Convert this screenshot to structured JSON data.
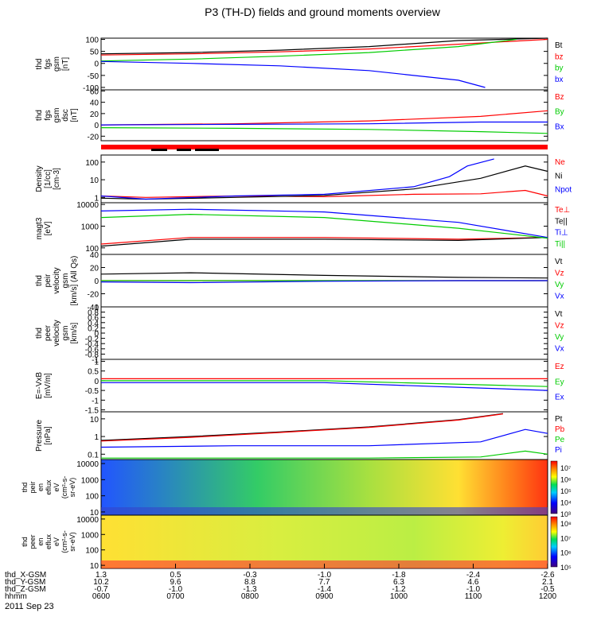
{
  "title": "P3 (TH-D) fields and ground moments overview",
  "date_label": "2011 Sep 23",
  "chart_data": {
    "type": "line",
    "panels": [
      {
        "id": "fgs_gsm",
        "ylabel_lines": [
          "thd",
          "fgs",
          "gsm",
          "[nT]"
        ],
        "yticks": [
          100,
          50,
          0,
          -50,
          -100
        ],
        "ylim": [
          -110,
          105
        ],
        "series": [
          {
            "name": "Bt",
            "color": "#000000",
            "x": [
              0,
              0.2,
              0.4,
              0.6,
              0.8,
              1.0
            ],
            "y": [
              40,
              45,
              55,
              70,
              95,
              110
            ]
          },
          {
            "name": "bz",
            "color": "#ff0000",
            "x": [
              0,
              0.2,
              0.4,
              0.6,
              0.8,
              1.0
            ],
            "y": [
              35,
              40,
              48,
              60,
              80,
              100
            ]
          },
          {
            "name": "by",
            "color": "#00cc00",
            "x": [
              0,
              0.2,
              0.4,
              0.6,
              0.8,
              0.93
            ],
            "y": [
              10,
              18,
              30,
              45,
              70,
              100
            ]
          },
          {
            "name": "bx",
            "color": "#0000ff",
            "x": [
              0,
              0.2,
              0.4,
              0.6,
              0.8,
              0.86
            ],
            "y": [
              8,
              0,
              -10,
              -30,
              -70,
              -100
            ]
          }
        ]
      },
      {
        "id": "fgs_gsm_dsl",
        "ylabel_lines": [
          "thd",
          "fgs",
          "gsm",
          "dsc",
          "[nT]"
        ],
        "yticks": [
          60,
          40,
          20,
          0,
          -20
        ],
        "ylim": [
          -28,
          62
        ],
        "series": [
          {
            "name": "Bz",
            "color": "#ff0000",
            "x": [
              0,
              0.3,
              0.6,
              0.85,
              1.0
            ],
            "y": [
              0,
              2,
              7,
              15,
              25
            ]
          },
          {
            "name": "By",
            "color": "#00cc00",
            "x": [
              0,
              0.3,
              0.6,
              0.85,
              1.0
            ],
            "y": [
              -5,
              -6,
              -8,
              -12,
              -15
            ]
          },
          {
            "name": "Bx",
            "color": "#0000ff",
            "x": [
              0,
              0.3,
              0.6,
              0.85,
              1.0
            ],
            "y": [
              0,
              1,
              2,
              5,
              5
            ]
          }
        ]
      },
      {
        "id": "density",
        "ylabel_lines": [
          "Density",
          "[1/cc]",
          "[cm-3]"
        ],
        "yticks": [
          100,
          10,
          1
        ],
        "ylog": true,
        "ylim": [
          0.5,
          250
        ],
        "series": [
          {
            "name": "Ne",
            "color": "#ff0000",
            "x": [
              0,
              0.1,
              0.3,
              0.5,
              0.7,
              0.85,
              0.95,
              1.0
            ],
            "y": [
              1.2,
              1.0,
              1.2,
              1.1,
              1.5,
              1.6,
              2.5,
              1.2
            ]
          },
          {
            "name": "Ni",
            "color": "#000000",
            "x": [
              0,
              0.1,
              0.3,
              0.5,
              0.7,
              0.85,
              0.95,
              1.0
            ],
            "y": [
              0.9,
              0.8,
              1.0,
              1.3,
              3,
              12,
              60,
              30
            ]
          },
          {
            "name": "Npot",
            "color": "#0000ff",
            "x": [
              0,
              0.1,
              0.3,
              0.5,
              0.7,
              0.78,
              0.82,
              0.88
            ],
            "y": [
              1.2,
              0.8,
              1.2,
              1.5,
              4,
              15,
              60,
              150
            ]
          }
        ]
      },
      {
        "id": "temperature",
        "ylabel_lines": [
          "magt3",
          "[eV]"
        ],
        "yticks": [
          10000,
          1000,
          100
        ],
        "ylog": true,
        "ylim": [
          50,
          12000
        ],
        "series": [
          {
            "name": "Te⊥",
            "color": "#ff0000",
            "x": [
              0,
              0.2,
              0.5,
              0.8,
              1.0
            ],
            "y": [
              150,
              300,
              300,
              250,
              300
            ]
          },
          {
            "name": "Te||",
            "color": "#000000",
            "x": [
              0,
              0.2,
              0.5,
              0.8,
              1.0
            ],
            "y": [
              120,
              250,
              250,
              220,
              300
            ]
          },
          {
            "name": "Ti⊥",
            "color": "#0000ff",
            "x": [
              0,
              0.2,
              0.5,
              0.8,
              1.0
            ],
            "y": [
              5000,
              6000,
              4500,
              1500,
              300
            ]
          },
          {
            "name": "Ti||",
            "color": "#00cc00",
            "x": [
              0,
              0.2,
              0.5,
              0.8,
              1.0
            ],
            "y": [
              2500,
              3500,
              2500,
              800,
              280
            ]
          }
        ]
      },
      {
        "id": "peir_velocity",
        "ylabel_lines": [
          "thd",
          "peir",
          "velocity",
          "gsm",
          "[km/s] (All Qs)"
        ],
        "yticks": [
          40,
          20,
          0,
          -20,
          -40
        ],
        "ylim": [
          -40,
          40
        ],
        "series": [
          {
            "name": "Vt",
            "color": "#000000",
            "x": [
              0,
              0.2,
              0.5,
              0.8,
              1.0
            ],
            "y": [
              10,
              12,
              8,
              5,
              4
            ]
          },
          {
            "name": "Vz",
            "color": "#ff0000",
            "x": [
              0,
              0.2,
              0.5,
              0.8,
              1.0
            ],
            "y": [
              0,
              0,
              0,
              0,
              0
            ]
          },
          {
            "name": "Vy",
            "color": "#00cc00",
            "x": [
              0,
              0.2,
              0.5,
              0.8,
              1.0
            ],
            "y": [
              0,
              0,
              0,
              0,
              0
            ]
          },
          {
            "name": "Vx",
            "color": "#0000ff",
            "x": [
              0,
              0.2,
              0.5,
              0.8,
              1.0
            ],
            "y": [
              -2,
              -3,
              -1,
              0,
              0
            ]
          }
        ]
      },
      {
        "id": "peer_velocity",
        "ylabel_lines": [
          "thd",
          "peer",
          "velocity",
          "gsm",
          "[km/s]"
        ],
        "yticks": [
          1.0,
          0.8,
          0.6,
          0.4,
          0.2,
          0.0,
          -0.2,
          -0.4,
          -0.6,
          -0.8,
          -1.0
        ],
        "ylim": [
          -1.0,
          1.0
        ],
        "series": [
          {
            "name": "Vt",
            "color": "#000000",
            "x": [],
            "y": []
          },
          {
            "name": "Vz",
            "color": "#ff0000",
            "x": [],
            "y": []
          },
          {
            "name": "Vy",
            "color": "#00cc00",
            "x": [],
            "y": []
          },
          {
            "name": "Vx",
            "color": "#0000ff",
            "x": [],
            "y": []
          }
        ]
      },
      {
        "id": "efield",
        "ylabel_lines": [
          "E=-VxB",
          "[mV/m]"
        ],
        "yticks": [
          1.0,
          0.5,
          0.0,
          -0.5,
          -1.0,
          -1.5
        ],
        "ylim": [
          -1.6,
          1.1
        ],
        "series": [
          {
            "name": "Ez",
            "color": "#ff0000",
            "x": [
              0,
              0.5,
              1.0
            ],
            "y": [
              0.1,
              0.1,
              0.1
            ]
          },
          {
            "name": "Ey",
            "color": "#00cc00",
            "x": [
              0,
              0.5,
              1.0
            ],
            "y": [
              0,
              0,
              -0.3
            ]
          },
          {
            "name": "Ex",
            "color": "#0000ff",
            "x": [
              0,
              0.5,
              1.0
            ],
            "y": [
              -0.1,
              -0.1,
              -0.5
            ]
          }
        ]
      },
      {
        "id": "pressure",
        "ylabel_lines": [
          "Pressure",
          "[nPa]"
        ],
        "yticks": [
          10.0,
          1.0,
          0.1
        ],
        "ylog": true,
        "ylim": [
          0.05,
          25
        ],
        "series": [
          {
            "name": "Pt",
            "color": "#000000",
            "x": [
              0,
              0.2,
              0.4,
              0.6,
              0.8,
              0.9
            ],
            "y": [
              0.6,
              1.0,
              1.8,
              3.5,
              9,
              20
            ]
          },
          {
            "name": "Pb",
            "color": "#ff0000",
            "x": [
              0,
              0.2,
              0.4,
              0.6,
              0.8,
              0.9
            ],
            "y": [
              0.55,
              0.9,
              1.7,
              3.3,
              8.5,
              19
            ]
          },
          {
            "name": "Pe",
            "color": "#00cc00",
            "x": [
              0,
              0.3,
              0.6,
              0.85,
              0.95,
              1.0
            ],
            "y": [
              0.06,
              0.06,
              0.06,
              0.07,
              0.15,
              0.1
            ]
          },
          {
            "name": "Pi",
            "color": "#0000ff",
            "x": [
              0,
              0.3,
              0.6,
              0.85,
              0.95,
              1.0
            ],
            "y": [
              0.25,
              0.3,
              0.3,
              0.5,
              2.5,
              1.5
            ]
          }
        ]
      }
    ],
    "spectrograms": [
      {
        "id": "peir_eflux",
        "ylabel_lines": [
          "thd",
          "peir",
          "en",
          "eflux",
          "eV",
          "(cm²-s-",
          "sr-eV)"
        ],
        "yticks": [
          10000,
          1000,
          100,
          10
        ],
        "colorbar_ticks": [
          "10⁷",
          "10⁶",
          "10⁵",
          "10⁴",
          "10³"
        ]
      },
      {
        "id": "peer_eflux",
        "ylabel_lines": [
          "thd",
          "peer",
          "en",
          "eflux",
          "eV",
          "(cm²-s-",
          "sr-eV)"
        ],
        "yticks": [
          10000,
          1000,
          100,
          10
        ],
        "colorbar_ticks": [
          "10⁸",
          "10⁷",
          "10⁶",
          "10⁵"
        ]
      }
    ],
    "x_axis": {
      "row_labels": [
        "thd_X-GSM",
        "thd_Y-GSM",
        "thd_Z-GSM",
        "hhmm"
      ],
      "columns": [
        [
          "1.3",
          "10.2",
          "-0.7",
          "0600"
        ],
        [
          "0.5",
          "9.6",
          "-1.0",
          "0700"
        ],
        [
          "-0.3",
          "8.8",
          "-1.3",
          "0800"
        ],
        [
          "-1.0",
          "7.7",
          "-1.4",
          "0900"
        ],
        [
          "-1.8",
          "6.3",
          "-1.2",
          "1000"
        ],
        [
          "-2.4",
          "4.6",
          "-1.0",
          "1100"
        ],
        [
          "-2.6",
          "2.1",
          "-0.5",
          "1200"
        ]
      ]
    }
  }
}
